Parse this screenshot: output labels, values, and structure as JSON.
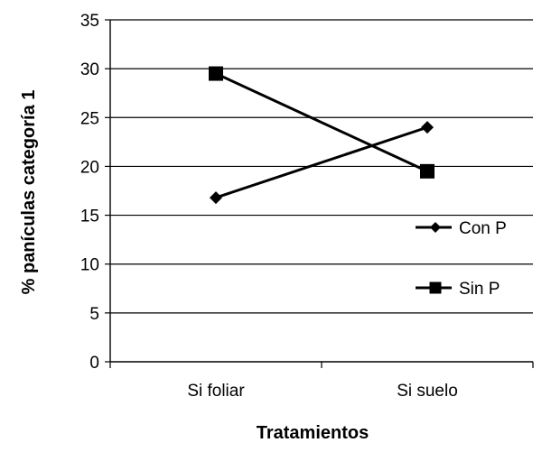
{
  "chart_data": {
    "type": "line",
    "categories": [
      "Si foliar",
      "Si suelo"
    ],
    "series": [
      {
        "name": "Con P",
        "values": [
          16.8,
          24.0
        ],
        "marker": "diamond",
        "color": "#000000"
      },
      {
        "name": "Sin P",
        "values": [
          29.5,
          19.5
        ],
        "marker": "square",
        "color": "#000000"
      }
    ],
    "xlabel": "Tratamientos",
    "ylabel": "% panículas categoría 1",
    "ylim": [
      0,
      35
    ],
    "yticks": [
      0,
      5,
      10,
      15,
      20,
      25,
      30,
      35
    ],
    "grid": "horizontal",
    "legend_position": "right"
  }
}
